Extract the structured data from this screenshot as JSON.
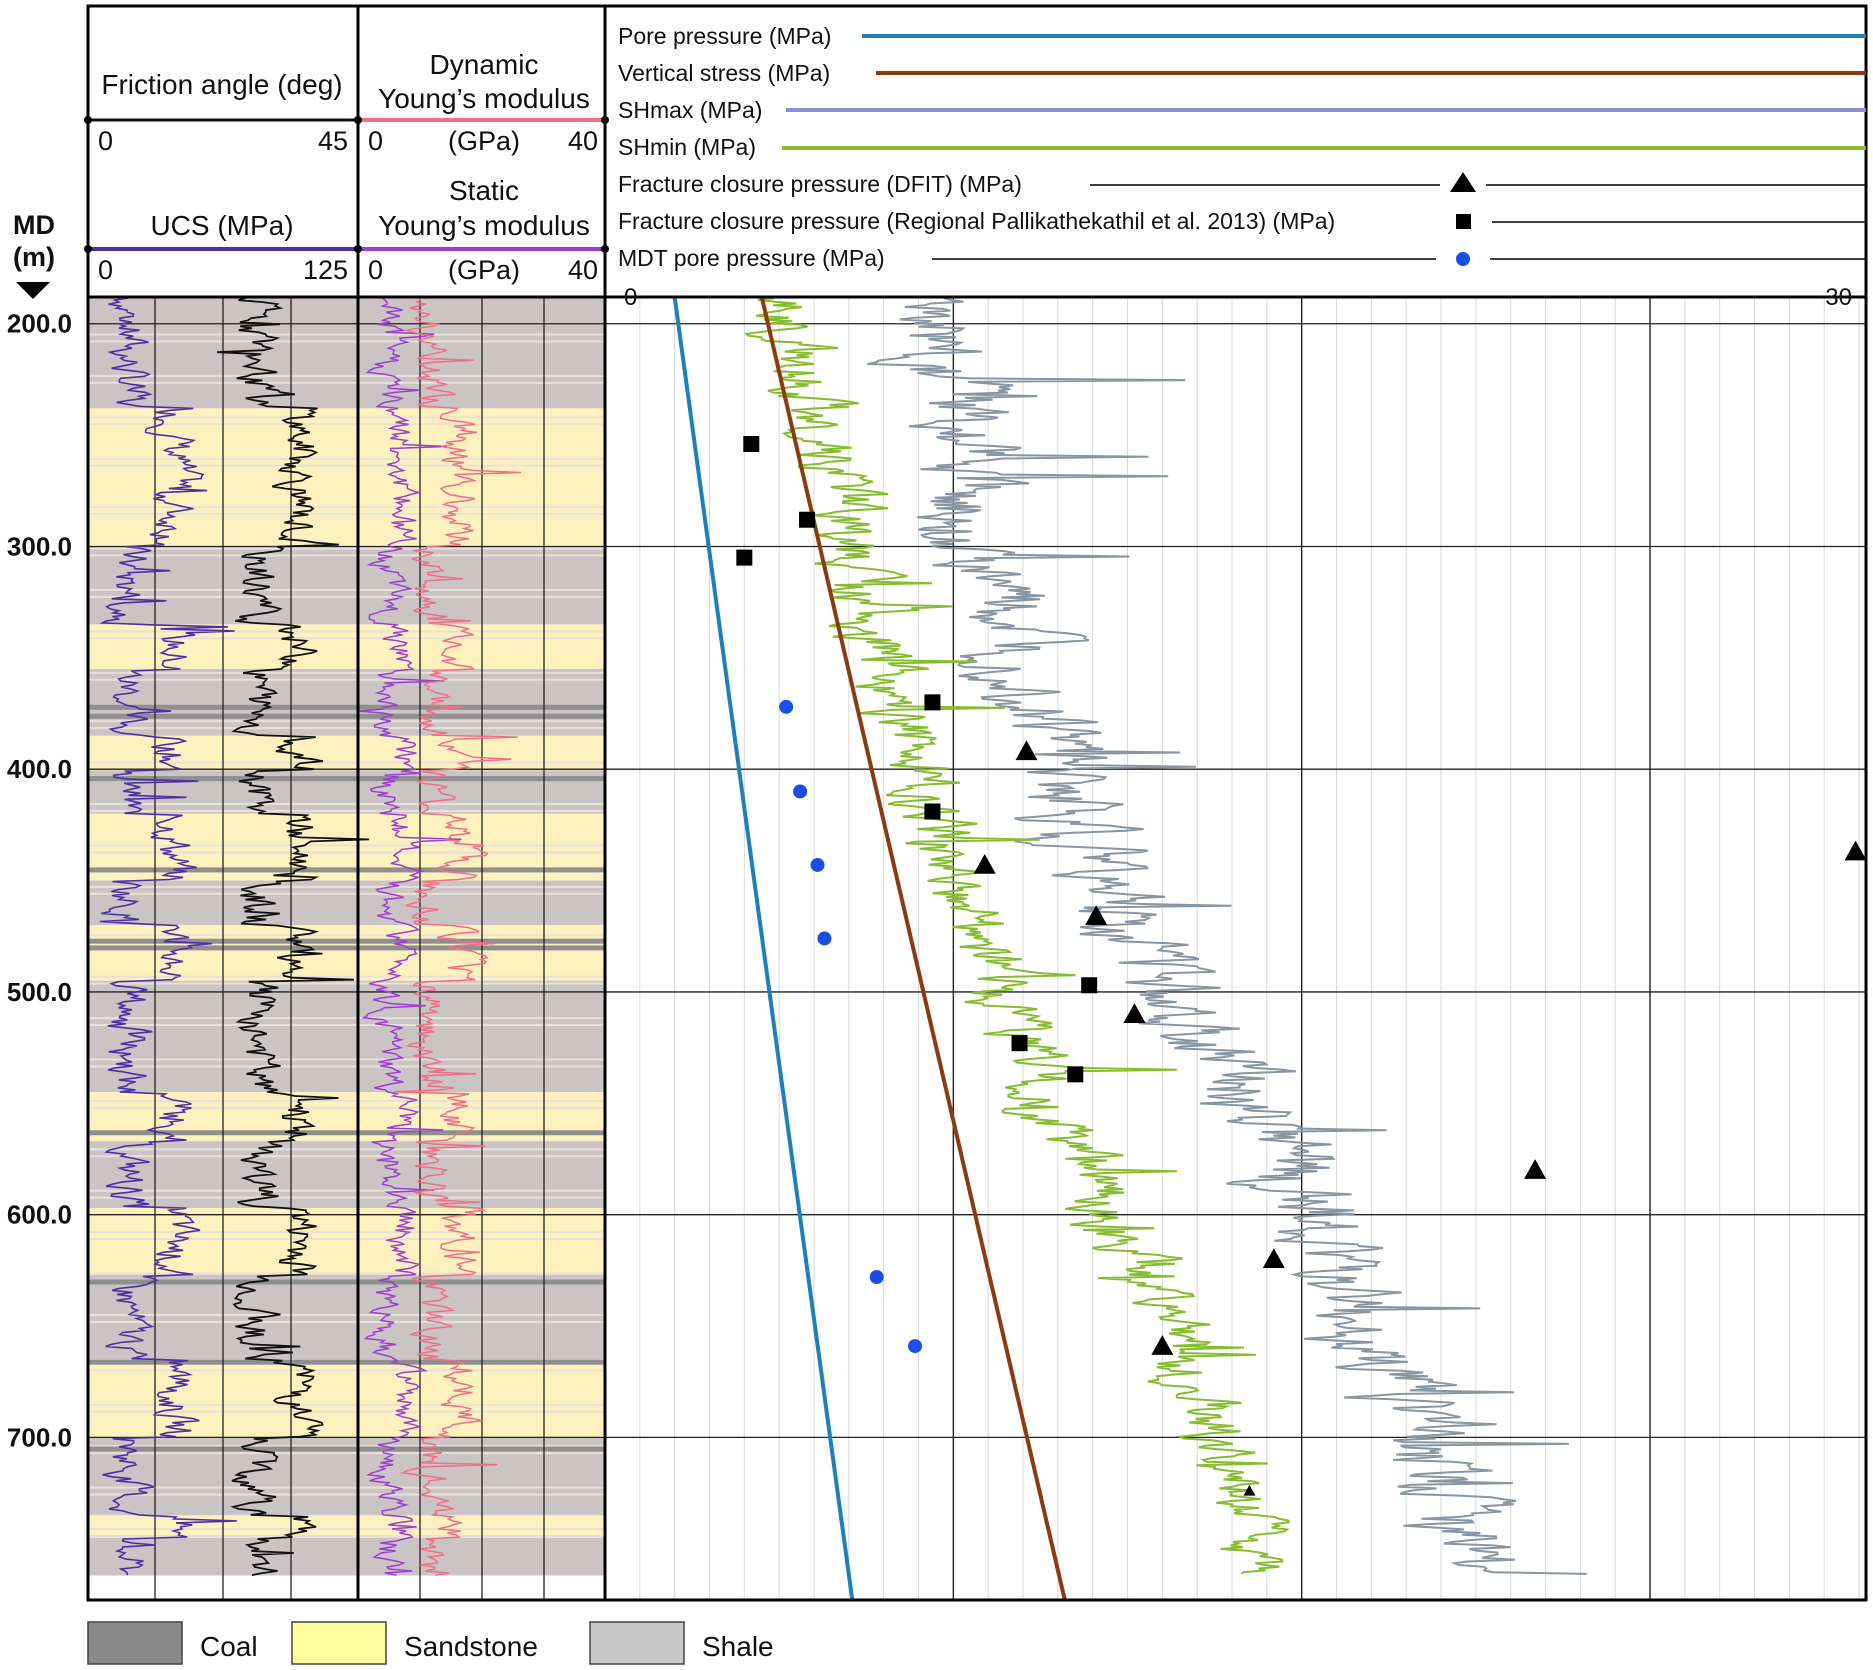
{
  "chart_data": {
    "type": "line",
    "depth_axis": {
      "title_line1": "MD",
      "title_line2": "(m)",
      "ticks": [
        200,
        300,
        400,
        500,
        600,
        700
      ],
      "tick_labels": [
        "200.0",
        "300.0",
        "400.0",
        "500.0",
        "600.0",
        "700.0"
      ],
      "range": [
        188,
        773
      ]
    },
    "tracks": {
      "track1": {
        "top_curve": {
          "name": "Friction angle (deg)",
          "min_label": "0",
          "max_label": "45",
          "color": "#111111"
        },
        "bottom_curve": {
          "name": "UCS (MPa)",
          "min_label": "0",
          "max_label": "125",
          "color": "#4b2fa3"
        }
      },
      "track2": {
        "top_curve": {
          "name_line1": "Dynamic",
          "name_line2": "Young’s modulus",
          "min_label": "0",
          "unit_label": "(GPa)",
          "max_label": "40",
          "color": "#ee6f86"
        },
        "bottom_curve": {
          "name_line1": "Static",
          "name_line2": "Young’s modulus",
          "min_label": "0",
          "unit_label": "(GPa)",
          "max_label": "40",
          "color": "#9a3fd0"
        }
      },
      "track3": {
        "x_min_label": "0",
        "x_max_label": "30",
        "xlim": [
          0,
          30
        ]
      }
    },
    "legend": [
      {
        "name": "Pore pressure (MPa)",
        "style": "line",
        "color": "#1d7fc1"
      },
      {
        "name": "Vertical stress (MPa)",
        "style": "line",
        "color": "#8b3b10"
      },
      {
        "name": "SHmax (MPa)",
        "style": "line",
        "color": "#8e8ecb"
      },
      {
        "name": "SHmin (MPa)",
        "style": "line",
        "color": "#86bc2f"
      },
      {
        "name": "Fracture closure pressure (DFIT) (MPa)",
        "style": "triangle",
        "color": "#000000"
      },
      {
        "name": "Fracture closure pressure (Regional Pallikathekathil et al. 2013) (MPa)",
        "style": "square",
        "color": "#000000"
      },
      {
        "name": "MDT pore pressure (MPa)",
        "style": "circle",
        "color": "#1a4ee6"
      }
    ],
    "lithology_legend": [
      {
        "name": "Coal",
        "color": "#8a8a8a"
      },
      {
        "name": "Sandstone",
        "color": "#ffffa0"
      },
      {
        "name": "Shale",
        "color": "#c8c8c8"
      }
    ],
    "lithology_intervals": [
      {
        "from": 188,
        "to": 238,
        "lith": "Shale"
      },
      {
        "from": 238,
        "to": 300,
        "lith": "Sandstone"
      },
      {
        "from": 300,
        "to": 335,
        "lith": "Shale"
      },
      {
        "from": 335,
        "to": 355,
        "lith": "Sandstone"
      },
      {
        "from": 355,
        "to": 385,
        "lith": "Shale"
      },
      {
        "from": 385,
        "to": 400,
        "lith": "Sandstone"
      },
      {
        "from": 400,
        "to": 420,
        "lith": "Shale"
      },
      {
        "from": 420,
        "to": 450,
        "lith": "Sandstone"
      },
      {
        "from": 450,
        "to": 470,
        "lith": "Shale"
      },
      {
        "from": 470,
        "to": 495,
        "lith": "Sandstone"
      },
      {
        "from": 495,
        "to": 545,
        "lith": "Shale"
      },
      {
        "from": 545,
        "to": 567,
        "lith": "Sandstone"
      },
      {
        "from": 567,
        "to": 597,
        "lith": "Shale"
      },
      {
        "from": 597,
        "to": 627,
        "lith": "Sandstone"
      },
      {
        "from": 627,
        "to": 665,
        "lith": "Shale"
      },
      {
        "from": 665,
        "to": 700,
        "lith": "Sandstone"
      },
      {
        "from": 700,
        "to": 735,
        "lith": "Shale"
      },
      {
        "from": 735,
        "to": 745,
        "lith": "Sandstone"
      },
      {
        "from": 745,
        "to": 762,
        "lith": "Shale"
      }
    ],
    "coal_seams": [
      372,
      376,
      404,
      445,
      477,
      480,
      563,
      630,
      666,
      705
    ],
    "pore_pressure": [
      {
        "md": 188,
        "p": 2.0
      },
      {
        "md": 773,
        "p": 7.1
      }
    ],
    "vertical_stress": [
      {
        "md": 188,
        "p": 4.5
      },
      {
        "md": 773,
        "p": 13.2
      }
    ],
    "shmin_profile": [
      {
        "md": 188,
        "p": 5.0
      },
      {
        "md": 250,
        "p": 6.2
      },
      {
        "md": 300,
        "p": 7.0
      },
      {
        "md": 350,
        "p": 7.8
      },
      {
        "md": 400,
        "p": 9.0
      },
      {
        "md": 450,
        "p": 10.2
      },
      {
        "md": 500,
        "p": 11.5
      },
      {
        "md": 550,
        "p": 12.7
      },
      {
        "md": 600,
        "p": 14.5
      },
      {
        "md": 650,
        "p": 16.2
      },
      {
        "md": 700,
        "p": 17.5
      },
      {
        "md": 750,
        "p": 18.5
      },
      {
        "md": 762,
        "p": 18.6
      }
    ],
    "shmax_profile": [
      {
        "md": 188,
        "p": 9.2
      },
      {
        "md": 250,
        "p": 10.2
      },
      {
        "md": 300,
        "p": 10.5
      },
      {
        "md": 350,
        "p": 12.0
      },
      {
        "md": 400,
        "p": 13.0
      },
      {
        "md": 450,
        "p": 14.3
      },
      {
        "md": 500,
        "p": 16.5
      },
      {
        "md": 550,
        "p": 18.5
      },
      {
        "md": 600,
        "p": 20.5
      },
      {
        "md": 650,
        "p": 21.5
      },
      {
        "md": 700,
        "p": 23.5
      },
      {
        "md": 750,
        "p": 25.0
      },
      {
        "md": 762,
        "p": 25.2
      }
    ],
    "dfit_points": [
      {
        "md": 392,
        "p": 12.1
      },
      {
        "md": 443,
        "p": 10.9
      },
      {
        "md": 466,
        "p": 14.1
      },
      {
        "md": 510,
        "p": 15.2
      },
      {
        "md": 580,
        "p": 26.7
      },
      {
        "md": 620,
        "p": 19.2
      },
      {
        "md": 659,
        "p": 16.0
      },
      {
        "md": 724,
        "p": 18.5
      },
      {
        "md": 437,
        "p": 35.9
      }
    ],
    "regional_points": [
      {
        "md": 254,
        "p": 4.2
      },
      {
        "md": 288,
        "p": 5.8
      },
      {
        "md": 305,
        "p": 4.0
      },
      {
        "md": 370,
        "p": 9.4
      },
      {
        "md": 419,
        "p": 9.4
      },
      {
        "md": 497,
        "p": 13.9
      },
      {
        "md": 523,
        "p": 11.9
      },
      {
        "md": 537,
        "p": 13.5
      }
    ],
    "mdt_points": [
      {
        "md": 372,
        "p": 5.2
      },
      {
        "md": 410,
        "p": 5.6
      },
      {
        "md": 443,
        "p": 6.1
      },
      {
        "md": 476,
        "p": 6.3
      },
      {
        "md": 628,
        "p": 7.8
      },
      {
        "md": 659,
        "p": 8.9
      }
    ]
  }
}
